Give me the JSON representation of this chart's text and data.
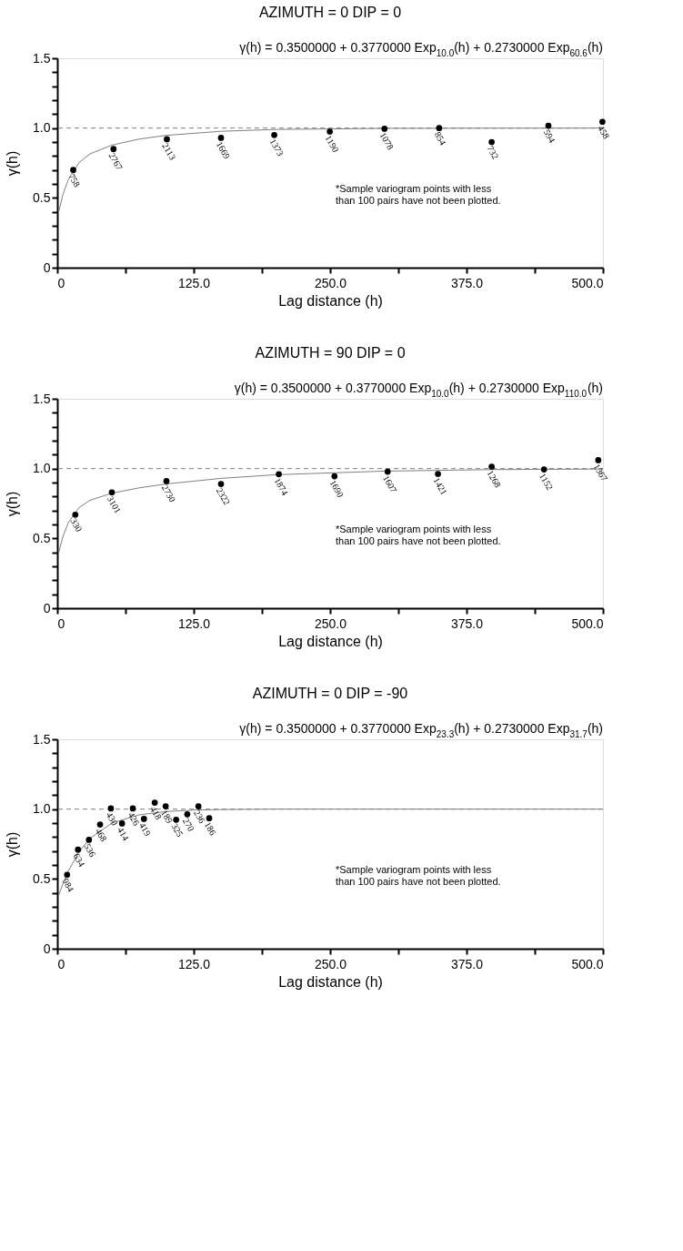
{
  "chart_data": [
    {
      "type": "scatter",
      "title": "AZIMUTH = 0   DIP = 0",
      "subtitle": "γ(h) = 0.3500000 + 0.3770000 Exp$_{10.0}$(h) + 0.2730000 Exp$_{60.6}$(h)",
      "xlabel": "Lag distance (h)",
      "ylabel": "γ(h)",
      "xlim": [
        0,
        500
      ],
      "ylim": [
        0,
        1.5
      ],
      "xticks": [
        0,
        {
          "value": 62.5,
          "label": null
        },
        {
          "value": 125,
          "label": "125.0"
        },
        {
          "value": 187.5,
          "label": null
        },
        {
          "value": 250,
          "label": "250.0"
        },
        {
          "value": 312.5,
          "label": null
        },
        {
          "value": 375,
          "label": "375.0"
        },
        {
          "value": 437.5,
          "label": null
        },
        {
          "value": 500,
          "label": "500.0"
        }
      ],
      "yticks": [
        0,
        {
          "value": 0.1,
          "label": null
        },
        {
          "value": 0.2,
          "label": null
        },
        {
          "value": 0.3,
          "label": null
        },
        {
          "value": 0.4,
          "label": null
        },
        0.5,
        {
          "value": 0.6,
          "label": null
        },
        {
          "value": 0.7,
          "label": null
        },
        {
          "value": 0.8,
          "label": null
        },
        {
          "value": 0.9,
          "label": null
        },
        {
          "value": 1.0,
          "label": "1.0"
        },
        {
          "value": 1.1,
          "label": null
        },
        {
          "value": 1.2,
          "label": null
        },
        {
          "value": 1.3,
          "label": null
        },
        {
          "value": 1.4,
          "label": null
        },
        1.5
      ],
      "grid": false,
      "marker": "circle",
      "ref_lines": [
        {
          "axis": "y",
          "value": 1.0,
          "color": "#808080",
          "line_style": "dashed"
        }
      ],
      "annotations": [
        "*Sample variogram points with less than 100 pairs have not been plotted.",
        {
          "text": "758",
          "x": 14.6,
          "y": 0.7
        },
        {
          "text": "2767",
          "x": 51.5,
          "y": 0.85
        },
        {
          "text": "2113",
          "x": 100.4,
          "y": 0.92
        },
        {
          "text": "1669",
          "x": 150,
          "y": 0.93
        },
        {
          "text": "1373",
          "x": 198.8,
          "y": 0.95
        },
        {
          "text": "1190",
          "x": 249.7,
          "y": 0.975
        },
        {
          "text": "1078",
          "x": 299.8,
          "y": 0.995
        },
        {
          "text": "854",
          "x": 349.9,
          "y": 1.0
        },
        {
          "text": "732",
          "x": 398,
          "y": 0.9
        },
        {
          "text": "594",
          "x": 450,
          "y": 1.017
        },
        {
          "text": "458",
          "x": 499.5,
          "y": 1.045
        }
      ],
      "series": [
        {
          "type": "line",
          "color": "#808080",
          "line_style": "solid",
          "marker": "none",
          "x": [
            1,
            5,
            10,
            20,
            30,
            50,
            75,
            100,
            150,
            200,
            300,
            500
          ],
          "values": [
            0.39,
            0.52,
            0.63,
            0.753,
            0.815,
            0.878,
            0.921,
            0.948,
            0.977,
            0.99,
            0.998,
            1.0
          ]
        },
        {
          "color": "#000000",
          "x": [
            14.6,
            51.5,
            100.4,
            150,
            198.8,
            249.7,
            299.8,
            349.9,
            398,
            450,
            499.5
          ],
          "values": [
            0.7,
            0.85,
            0.92,
            0.93,
            0.95,
            0.975,
            0.995,
            1.0,
            0.9,
            1.017,
            1.045
          ]
        }
      ]
    },
    {
      "type": "scatter",
      "title": "AZIMUTH = 90   DIP = 0",
      "subtitle": "γ(h) = 0.3500000 + 0.3770000 Exp$_{10.0}$(h) + 0.2730000 Exp$_{110.0}$(h)",
      "xlabel": "Lag distance (h)",
      "ylabel": "γ(h)",
      "xlim": [
        0,
        500
      ],
      "ylim": [
        0,
        1.5
      ],
      "xticks": [
        0,
        {
          "value": 62.5,
          "label": null
        },
        {
          "value": 125,
          "label": "125.0"
        },
        {
          "value": 187.5,
          "label": null
        },
        {
          "value": 250,
          "label": "250.0"
        },
        {
          "value": 312.5,
          "label": null
        },
        {
          "value": 375,
          "label": "375.0"
        },
        {
          "value": 437.5,
          "label": null
        },
        {
          "value": 500,
          "label": "500.0"
        }
      ],
      "yticks": [
        0,
        {
          "value": 0.1,
          "label": null
        },
        {
          "value": 0.2,
          "label": null
        },
        {
          "value": 0.3,
          "label": null
        },
        {
          "value": 0.4,
          "label": null
        },
        0.5,
        {
          "value": 0.6,
          "label": null
        },
        {
          "value": 0.7,
          "label": null
        },
        {
          "value": 0.8,
          "label": null
        },
        {
          "value": 0.9,
          "label": null
        },
        {
          "value": 1.0,
          "label": "1.0"
        },
        {
          "value": 1.1,
          "label": null
        },
        {
          "value": 1.2,
          "label": null
        },
        {
          "value": 1.3,
          "label": null
        },
        {
          "value": 1.4,
          "label": null
        },
        1.5
      ],
      "grid": false,
      "marker": "circle",
      "ref_lines": [
        {
          "axis": "y",
          "value": 1.0,
          "color": "#808080",
          "line_style": "dashed"
        }
      ],
      "annotations": [
        "*Sample variogram points with less than 100 pairs have not been plotted.",
        {
          "text": "330",
          "x": 16.5,
          "y": 0.67
        },
        {
          "text": "3101",
          "x": 50,
          "y": 0.83
        },
        {
          "text": "2730",
          "x": 100,
          "y": 0.91
        },
        {
          "text": "2322",
          "x": 150,
          "y": 0.89
        },
        {
          "text": "1874",
          "x": 203,
          "y": 0.96
        },
        {
          "text": "1690",
          "x": 254,
          "y": 0.945
        },
        {
          "text": "1607",
          "x": 302.7,
          "y": 0.978
        },
        {
          "text": "1421",
          "x": 348.8,
          "y": 0.962
        },
        {
          "text": "1268",
          "x": 398,
          "y": 1.014
        },
        {
          "text": "1152",
          "x": 446,
          "y": 0.994
        },
        {
          "text": "1367",
          "x": 495.7,
          "y": 1.06
        }
      ],
      "series": [
        {
          "type": "line",
          "color": "#808080",
          "line_style": "solid",
          "marker": "none",
          "x": [
            1,
            5,
            10,
            20,
            30,
            50,
            75,
            100,
            150,
            200,
            300,
            400,
            500
          ],
          "values": [
            0.388,
            0.51,
            0.612,
            0.721,
            0.773,
            0.824,
            0.862,
            0.89,
            0.93,
            0.956,
            0.982,
            0.993,
            0.997
          ]
        },
        {
          "color": "#000000",
          "x": [
            16.5,
            50,
            100,
            150,
            203,
            254,
            302.7,
            348.8,
            398,
            446,
            495.7
          ],
          "values": [
            0.67,
            0.83,
            0.91,
            0.89,
            0.96,
            0.945,
            0.978,
            0.962,
            1.014,
            0.994,
            1.06
          ]
        }
      ]
    },
    {
      "type": "scatter",
      "title": "AZIMUTH = 0   DIP = -90",
      "subtitle": "γ(h) = 0.3500000 + 0.3770000 Exp$_{23.3}$(h) + 0.2730000 Exp$_{31.7}$(h)",
      "xlabel": "Lag distance (h)",
      "ylabel": "γ(h)",
      "xlim": [
        0,
        500
      ],
      "ylim": [
        0,
        1.5
      ],
      "xticks": [
        0,
        {
          "value": 62.5,
          "label": null
        },
        {
          "value": 125,
          "label": "125.0"
        },
        {
          "value": 187.5,
          "label": null
        },
        {
          "value": 250,
          "label": "250.0"
        },
        {
          "value": 312.5,
          "label": null
        },
        {
          "value": 375,
          "label": "375.0"
        },
        {
          "value": 437.5,
          "label": null
        },
        {
          "value": 500,
          "label": "500.0"
        }
      ],
      "yticks": [
        0,
        {
          "value": 0.1,
          "label": null
        },
        {
          "value": 0.2,
          "label": null
        },
        {
          "value": 0.3,
          "label": null
        },
        {
          "value": 0.4,
          "label": null
        },
        0.5,
        {
          "value": 0.6,
          "label": null
        },
        {
          "value": 0.7,
          "label": null
        },
        {
          "value": 0.8,
          "label": null
        },
        {
          "value": 0.9,
          "label": null
        },
        {
          "value": 1.0,
          "label": "1.0"
        },
        {
          "value": 1.1,
          "label": null
        },
        {
          "value": 1.2,
          "label": null
        },
        {
          "value": 1.3,
          "label": null
        },
        {
          "value": 1.4,
          "label": null
        },
        1.5
      ],
      "grid": false,
      "marker": "circle",
      "ref_lines": [
        {
          "axis": "y",
          "value": 1.0,
          "color": "#808080",
          "line_style": "dashed"
        }
      ],
      "annotations": [
        "*Sample variogram points with less than 100 pairs have not been plotted.",
        {
          "text": "984",
          "x": 9,
          "y": 0.53
        },
        {
          "text": "634",
          "x": 19,
          "y": 0.71
        },
        {
          "text": "536",
          "x": 29,
          "y": 0.78
        },
        {
          "text": "468",
          "x": 39.2,
          "y": 0.89
        },
        {
          "text": "430",
          "x": 49.1,
          "y": 1.005
        },
        {
          "text": "414",
          "x": 59.3,
          "y": 0.897
        },
        {
          "text": "426",
          "x": 69.2,
          "y": 1.005
        },
        {
          "text": "419",
          "x": 79.4,
          "y": 0.93
        },
        {
          "text": "418",
          "x": 89.3,
          "y": 1.046
        },
        {
          "text": "189",
          "x": 99.3,
          "y": 1.02
        },
        {
          "text": "325",
          "x": 108.9,
          "y": 0.924
        },
        {
          "text": "270",
          "x": 119.1,
          "y": 0.963
        },
        {
          "text": "236",
          "x": 129.3,
          "y": 1.02
        },
        {
          "text": "186",
          "x": 139.2,
          "y": 0.935
        }
      ],
      "series": [
        {
          "type": "line",
          "color": "#808080",
          "line_style": "solid",
          "marker": "none",
          "x": [
            1,
            5,
            10,
            20,
            30,
            50,
            75,
            100,
            125,
            150,
            200,
            500
          ],
          "values": [
            0.374,
            0.463,
            0.555,
            0.695,
            0.79,
            0.9,
            0.959,
            0.983,
            0.993,
            0.997,
            1.0,
            1.0
          ]
        },
        {
          "color": "#000000",
          "x": [
            9,
            19,
            29,
            39.2,
            49.1,
            59.3,
            69.2,
            79.4,
            89.3,
            99.3,
            108.9,
            119.1,
            129.3,
            139.2
          ],
          "values": [
            0.53,
            0.71,
            0.78,
            0.89,
            1.005,
            0.897,
            1.005,
            0.93,
            1.046,
            1.02,
            0.924,
            0.963,
            1.02,
            0.935
          ]
        }
      ]
    }
  ]
}
